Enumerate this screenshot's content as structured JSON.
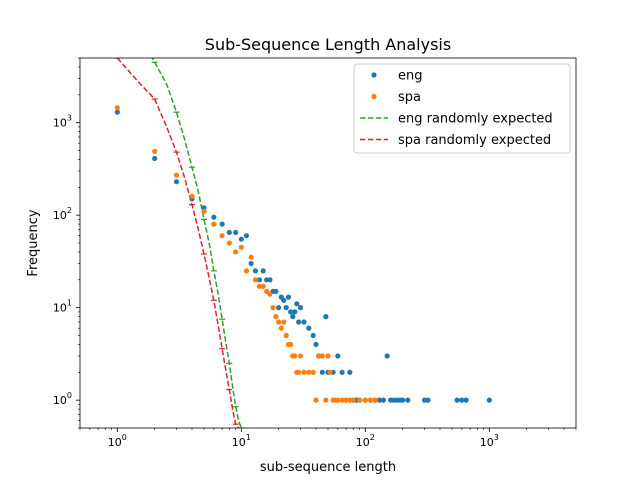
{
  "chart_data": {
    "type": "scatter",
    "title": "Sub-Sequence Length Analysis",
    "xlabel": "sub-sequence length",
    "ylabel": "Frequency",
    "xscale": "log",
    "yscale": "log",
    "xlim": [
      0.5,
      5000
    ],
    "ylim": [
      0.5,
      5000
    ],
    "x_ticks": [
      {
        "value": 1,
        "base": "10",
        "exp": "0"
      },
      {
        "value": 10,
        "base": "10",
        "exp": "1"
      },
      {
        "value": 100,
        "base": "10",
        "exp": "2"
      },
      {
        "value": 1000,
        "base": "10",
        "exp": "3"
      }
    ],
    "y_ticks": [
      {
        "value": 1,
        "base": "10",
        "exp": "0"
      },
      {
        "value": 10,
        "base": "10",
        "exp": "1"
      },
      {
        "value": 100,
        "base": "10",
        "exp": "2"
      },
      {
        "value": 1000,
        "base": "10",
        "exp": "3"
      }
    ],
    "grid": false,
    "legend_position": "top-right",
    "legend": [
      {
        "label": "eng",
        "kind": "marker",
        "color": "#1f77b4"
      },
      {
        "label": "spa",
        "kind": "marker",
        "color": "#ff7f0e"
      },
      {
        "label": "eng randomly expected",
        "kind": "dashed",
        "color": "#2ca02c"
      },
      {
        "label": "spa randomly expected",
        "kind": "dashed",
        "color": "#d62728"
      }
    ],
    "series": [
      {
        "name": "eng",
        "kind": "scatter",
        "color": "#1f77b4",
        "points": [
          [
            1,
            1300
          ],
          [
            2,
            410
          ],
          [
            3,
            230
          ],
          [
            4,
            150
          ],
          [
            5,
            120
          ],
          [
            6,
            95
          ],
          [
            7,
            80
          ],
          [
            8,
            65
          ],
          [
            9,
            65
          ],
          [
            10,
            55
          ],
          [
            11,
            60
          ],
          [
            12,
            30
          ],
          [
            13,
            25
          ],
          [
            14,
            20
          ],
          [
            15,
            25
          ],
          [
            16,
            20
          ],
          [
            17,
            20
          ],
          [
            18,
            15
          ],
          [
            19,
            15
          ],
          [
            20,
            10
          ],
          [
            21,
            13
          ],
          [
            22,
            12
          ],
          [
            23,
            10
          ],
          [
            24,
            13
          ],
          [
            25,
            9
          ],
          [
            26,
            8
          ],
          [
            27,
            9
          ],
          [
            28,
            11
          ],
          [
            29,
            7
          ],
          [
            30,
            10
          ],
          [
            32,
            7
          ],
          [
            35,
            6
          ],
          [
            38,
            5
          ],
          [
            40,
            4
          ],
          [
            42,
            3
          ],
          [
            45,
            2
          ],
          [
            48,
            8
          ],
          [
            50,
            2
          ],
          [
            55,
            2
          ],
          [
            60,
            3
          ],
          [
            65,
            2
          ],
          [
            70,
            1
          ],
          [
            75,
            2
          ],
          [
            80,
            1
          ],
          [
            85,
            1
          ],
          [
            90,
            1
          ],
          [
            100,
            1
          ],
          [
            110,
            1
          ],
          [
            120,
            1
          ],
          [
            130,
            1
          ],
          [
            140,
            1
          ],
          [
            150,
            3
          ],
          [
            160,
            1
          ],
          [
            170,
            1
          ],
          [
            180,
            1
          ],
          [
            190,
            1
          ],
          [
            200,
            1
          ],
          [
            220,
            1
          ],
          [
            300,
            1
          ],
          [
            320,
            1
          ],
          [
            550,
            1
          ],
          [
            600,
            1
          ],
          [
            650,
            1
          ],
          [
            1000,
            1
          ]
        ]
      },
      {
        "name": "spa",
        "kind": "scatter",
        "color": "#ff7f0e",
        "points": [
          [
            1,
            1450
          ],
          [
            2,
            490
          ],
          [
            3,
            270
          ],
          [
            4,
            160
          ],
          [
            5,
            110
          ],
          [
            6,
            80
          ],
          [
            7,
            60
          ],
          [
            8,
            50
          ],
          [
            9,
            40
          ],
          [
            10,
            45
          ],
          [
            11,
            25
          ],
          [
            12,
            35
          ],
          [
            13,
            20
          ],
          [
            14,
            17
          ],
          [
            15,
            17
          ],
          [
            16,
            15
          ],
          [
            17,
            14
          ],
          [
            18,
            10
          ],
          [
            19,
            8
          ],
          [
            20,
            7
          ],
          [
            21,
            6
          ],
          [
            22,
            7
          ],
          [
            23,
            5
          ],
          [
            24,
            4
          ],
          [
            25,
            4
          ],
          [
            26,
            3
          ],
          [
            27,
            3
          ],
          [
            28,
            2
          ],
          [
            29,
            2
          ],
          [
            30,
            3
          ],
          [
            32,
            2
          ],
          [
            35,
            2
          ],
          [
            38,
            2
          ],
          [
            40,
            1
          ],
          [
            42,
            3
          ],
          [
            45,
            3
          ],
          [
            48,
            1
          ],
          [
            50,
            3
          ],
          [
            52,
            2
          ],
          [
            55,
            1
          ],
          [
            58,
            1
          ],
          [
            60,
            1
          ],
          [
            65,
            1
          ],
          [
            70,
            1
          ],
          [
            75,
            1
          ],
          [
            80,
            1
          ],
          [
            90,
            1
          ],
          [
            100,
            1
          ],
          [
            110,
            1
          ],
          [
            120,
            1
          ]
        ]
      },
      {
        "name": "eng randomly expected",
        "kind": "line",
        "color": "#2ca02c",
        "points": [
          [
            1.5,
            9000
          ],
          [
            2,
            4500
          ],
          [
            2.5,
            2600
          ],
          [
            3,
            1300
          ],
          [
            3.5,
            650
          ],
          [
            4,
            330
          ],
          [
            4.5,
            180
          ],
          [
            5,
            90
          ],
          [
            5.5,
            50
          ],
          [
            6,
            25
          ],
          [
            6.5,
            14
          ],
          [
            7,
            7.5
          ],
          [
            7.5,
            4.2
          ],
          [
            8,
            2.5
          ],
          [
            8.5,
            1.4
          ],
          [
            9,
            0.85
          ],
          [
            9.5,
            0.6
          ],
          [
            10,
            0.5
          ]
        ]
      },
      {
        "name": "spa randomly expected",
        "kind": "line",
        "color": "#d62728",
        "points": [
          [
            1,
            5000
          ],
          [
            1.5,
            2700
          ],
          [
            2,
            1800
          ],
          [
            2.5,
            900
          ],
          [
            3,
            480
          ],
          [
            3.5,
            250
          ],
          [
            4,
            130
          ],
          [
            4.5,
            70
          ],
          [
            5,
            38
          ],
          [
            5.5,
            21
          ],
          [
            6,
            12
          ],
          [
            6.5,
            6.5
          ],
          [
            7,
            3.6
          ],
          [
            7.5,
            2.1
          ],
          [
            8,
            1.3
          ],
          [
            8.5,
            0.8
          ],
          [
            9,
            0.55
          ],
          [
            9.5,
            0.5
          ]
        ]
      }
    ]
  }
}
